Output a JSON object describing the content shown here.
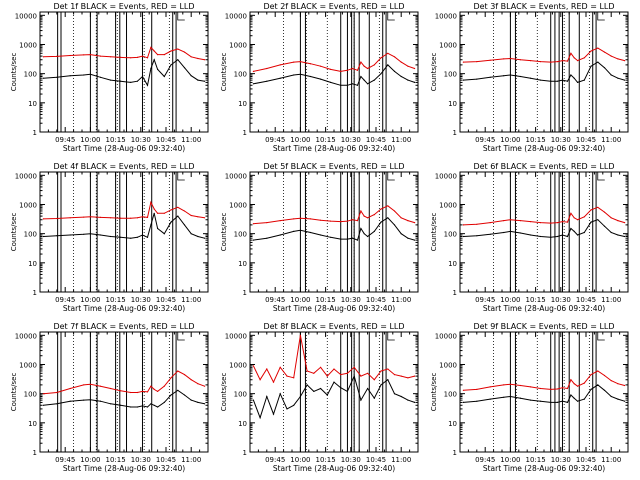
{
  "colors": {
    "events": "#000000",
    "lld": "#e00000",
    "frame": "#000000",
    "background": "#ffffff"
  },
  "shared": {
    "xticks": [
      "09:45",
      "10:00",
      "10:15",
      "10:30",
      "10:45",
      "11:00"
    ],
    "xtick_values_min": [
      45,
      60,
      75,
      90,
      105,
      120
    ],
    "xlim_min": [
      30,
      130
    ],
    "yticks": [
      "1",
      "10",
      "100",
      "1000",
      "10000"
    ],
    "ylim": [
      1,
      13000
    ],
    "yscale": "log",
    "ylabel": "Counts/sec",
    "xlabel": "Start Time (28-Aug-06 09:32:40)"
  },
  "chart_data": [
    {
      "type": "line",
      "title": "Det 1f  BLACK = Events, RED = LLD",
      "x": [
        32,
        40,
        48,
        56,
        60,
        66,
        72,
        78,
        84,
        88,
        91,
        94,
        96,
        98,
        100,
        104,
        108,
        112,
        116,
        120,
        124,
        128
      ],
      "series": [
        {
          "name": "Events",
          "color": "events",
          "values": [
            70,
            75,
            85,
            90,
            95,
            75,
            60,
            55,
            50,
            55,
            80,
            40,
            150,
            300,
            140,
            80,
            200,
            300,
            160,
            85,
            60,
            55
          ]
        },
        {
          "name": "LLD",
          "color": "lld",
          "values": [
            380,
            390,
            420,
            440,
            450,
            400,
            380,
            360,
            350,
            360,
            400,
            350,
            800,
            600,
            450,
            450,
            600,
            700,
            550,
            380,
            330,
            300
          ]
        }
      ],
      "vlines_min": [
        40.5,
        42.5,
        60,
        64,
        75,
        77.5,
        81.5,
        91,
        96.5,
        109,
        111
      ],
      "dotted_min": [
        50,
        63.5,
        76,
        92,
        107
      ]
    },
    {
      "type": "line",
      "title": "Det 2f  BLACK = Events, RED = LLD",
      "x": [
        32,
        40,
        48,
        56,
        60,
        66,
        72,
        78,
        84,
        88,
        91,
        94,
        96,
        98,
        100,
        104,
        108,
        112,
        116,
        120,
        124,
        128
      ],
      "series": [
        {
          "name": "Events",
          "color": "events",
          "values": [
            45,
            55,
            70,
            90,
            95,
            80,
            65,
            50,
            40,
            40,
            45,
            40,
            80,
            60,
            45,
            60,
            100,
            200,
            120,
            80,
            60,
            50
          ]
        },
        {
          "name": "LLD",
          "color": "lld",
          "values": [
            120,
            150,
            200,
            250,
            260,
            220,
            180,
            140,
            120,
            130,
            150,
            130,
            250,
            180,
            150,
            200,
            350,
            500,
            380,
            250,
            180,
            150
          ]
        }
      ],
      "vlines_min": [
        60,
        63,
        84,
        88,
        90.5,
        92,
        95,
        101,
        109,
        111
      ],
      "dotted_min": [
        50,
        63.5,
        76,
        92,
        107
      ]
    },
    {
      "type": "line",
      "title": "Det 3f  BLACK = Events, RED = LLD",
      "x": [
        32,
        40,
        48,
        56,
        60,
        66,
        72,
        78,
        84,
        88,
        91,
        94,
        96,
        98,
        100,
        104,
        108,
        112,
        116,
        120,
        124,
        128
      ],
      "series": [
        {
          "name": "Events",
          "color": "events",
          "values": [
            60,
            65,
            75,
            85,
            90,
            80,
            70,
            60,
            55,
            55,
            60,
            55,
            90,
            70,
            50,
            60,
            180,
            250,
            160,
            90,
            70,
            60
          ]
        },
        {
          "name": "LLD",
          "color": "lld",
          "values": [
            250,
            260,
            290,
            320,
            330,
            300,
            280,
            260,
            250,
            260,
            280,
            270,
            500,
            350,
            280,
            350,
            600,
            750,
            550,
            400,
            320,
            280
          ]
        }
      ],
      "vlines_min": [
        60,
        63,
        84,
        86.5,
        89,
        91,
        95,
        101,
        109,
        111
      ],
      "dotted_min": [
        50,
        63.5,
        76,
        92,
        107
      ]
    },
    {
      "type": "line",
      "title": "Det 4f  BLACK = Events, RED = LLD",
      "x": [
        32,
        40,
        48,
        56,
        60,
        66,
        72,
        78,
        84,
        88,
        91,
        94,
        96,
        98,
        100,
        104,
        108,
        112,
        116,
        120,
        124,
        128
      ],
      "series": [
        {
          "name": "Events",
          "color": "events",
          "values": [
            80,
            85,
            90,
            95,
            100,
            90,
            80,
            75,
            70,
            75,
            90,
            75,
            200,
            500,
            150,
            100,
            250,
            400,
            200,
            100,
            80,
            70
          ]
        },
        {
          "name": "LLD",
          "color": "lld",
          "values": [
            320,
            330,
            350,
            370,
            380,
            360,
            350,
            340,
            340,
            350,
            380,
            360,
            1200,
            700,
            500,
            500,
            650,
            800,
            600,
            420,
            380,
            350
          ]
        }
      ],
      "vlines_min": [
        40.5,
        42.5,
        60,
        64,
        75,
        77.5,
        81.5,
        91,
        96.5,
        109,
        111
      ],
      "dotted_min": [
        50,
        63.5,
        76,
        92,
        107
      ]
    },
    {
      "type": "line",
      "title": "Det 5f  BLACK = Events, RED = LLD",
      "x": [
        32,
        40,
        48,
        56,
        60,
        66,
        72,
        78,
        84,
        88,
        91,
        94,
        96,
        98,
        100,
        104,
        108,
        112,
        116,
        120,
        124,
        128
      ],
      "series": [
        {
          "name": "Events",
          "color": "events",
          "values": [
            60,
            70,
            90,
            120,
            130,
            110,
            90,
            75,
            65,
            65,
            70,
            60,
            150,
            100,
            80,
            120,
            250,
            350,
            200,
            100,
            70,
            60
          ]
        },
        {
          "name": "LLD",
          "color": "lld",
          "values": [
            220,
            240,
            280,
            320,
            340,
            320,
            290,
            270,
            260,
            270,
            300,
            280,
            600,
            400,
            350,
            450,
            700,
            900,
            600,
            350,
            280,
            240
          ]
        }
      ],
      "vlines_min": [
        60,
        63,
        84,
        88,
        90.5,
        92,
        95,
        101,
        109,
        111
      ],
      "dotted_min": [
        50,
        63.5,
        76,
        92,
        107
      ]
    },
    {
      "type": "line",
      "title": "Det 6f  BLACK = Events, RED = LLD",
      "x": [
        32,
        40,
        48,
        56,
        60,
        66,
        72,
        78,
        84,
        88,
        91,
        94,
        96,
        98,
        100,
        104,
        108,
        112,
        116,
        120,
        124,
        128
      ],
      "series": [
        {
          "name": "Events",
          "color": "events",
          "values": [
            80,
            85,
            95,
            110,
            120,
            105,
            90,
            80,
            75,
            80,
            90,
            80,
            150,
            120,
            90,
            110,
            250,
            300,
            180,
            110,
            90,
            80
          ]
        },
        {
          "name": "LLD",
          "color": "lld",
          "values": [
            200,
            210,
            240,
            280,
            300,
            280,
            260,
            240,
            230,
            240,
            260,
            250,
            500,
            350,
            300,
            380,
            650,
            800,
            550,
            350,
            280,
            240
          ]
        }
      ],
      "vlines_min": [
        60,
        63,
        84,
        86.5,
        89,
        91,
        95,
        101,
        109,
        111
      ],
      "dotted_min": [
        50,
        63.5,
        76,
        92,
        107
      ]
    },
    {
      "type": "line",
      "title": "Det 7f  BLACK = Events, RED = LLD",
      "x": [
        32,
        40,
        48,
        56,
        60,
        66,
        72,
        78,
        84,
        88,
        91,
        94,
        96,
        98,
        100,
        104,
        108,
        112,
        116,
        120,
        124,
        128
      ],
      "series": [
        {
          "name": "Events",
          "color": "events",
          "values": [
            40,
            45,
            55,
            60,
            62,
            55,
            45,
            40,
            35,
            35,
            38,
            35,
            45,
            40,
            35,
            50,
            90,
            130,
            90,
            60,
            50,
            45
          ]
        },
        {
          "name": "LLD",
          "color": "lld",
          "values": [
            100,
            110,
            150,
            200,
            210,
            180,
            150,
            125,
            110,
            110,
            120,
            115,
            180,
            140,
            120,
            180,
            350,
            600,
            450,
            300,
            220,
            180
          ]
        }
      ],
      "vlines_min": [
        40.5,
        42.5,
        60,
        64,
        75,
        77.5,
        81.5,
        91,
        96.5,
        109,
        111
      ],
      "dotted_min": [
        50,
        63.5,
        76,
        92,
        107
      ]
    },
    {
      "type": "line",
      "title": "Det 8f  BLACK = Events, RED = LLD",
      "x": [
        32,
        36,
        40,
        44,
        48,
        52,
        56,
        60,
        64,
        68,
        72,
        76,
        80,
        84,
        88,
        92,
        96,
        100,
        104,
        108,
        112,
        116,
        120,
        124,
        128
      ],
      "series": [
        {
          "name": "Events",
          "color": "events",
          "values": [
            60,
            15,
            80,
            20,
            100,
            30,
            40,
            80,
            200,
            120,
            150,
            90,
            250,
            160,
            120,
            400,
            60,
            150,
            70,
            200,
            300,
            100,
            80,
            60,
            50
          ]
        },
        {
          "name": "LLD",
          "color": "lld",
          "values": [
            900,
            300,
            700,
            250,
            800,
            400,
            350,
            10000,
            600,
            500,
            800,
            400,
            700,
            450,
            500,
            800,
            400,
            500,
            300,
            600,
            700,
            450,
            400,
            350,
            400
          ]
        }
      ],
      "vlines_min": [
        60,
        63,
        84,
        88,
        90.5,
        92,
        95,
        101,
        109,
        111
      ],
      "dotted_min": [
        50,
        63.5,
        76,
        92,
        107
      ]
    },
    {
      "type": "line",
      "title": "Det 9f  BLACK = Events, RED = LLD",
      "x": [
        32,
        40,
        48,
        56,
        60,
        66,
        72,
        78,
        84,
        88,
        91,
        94,
        96,
        98,
        100,
        104,
        108,
        112,
        116,
        120,
        124,
        128
      ],
      "series": [
        {
          "name": "Events",
          "color": "events",
          "values": [
            50,
            55,
            65,
            75,
            80,
            70,
            60,
            55,
            50,
            50,
            55,
            50,
            90,
            70,
            55,
            65,
            140,
            200,
            130,
            80,
            65,
            55
          ]
        },
        {
          "name": "LLD",
          "color": "lld",
          "values": [
            130,
            140,
            170,
            200,
            210,
            190,
            170,
            150,
            140,
            145,
            160,
            150,
            300,
            220,
            180,
            230,
            450,
            600,
            420,
            280,
            220,
            190
          ]
        }
      ],
      "vlines_min": [
        60,
        63,
        84,
        86.5,
        89,
        91,
        95,
        101,
        109,
        111
      ],
      "dotted_min": [
        50,
        63.5,
        76,
        92,
        107
      ]
    }
  ]
}
